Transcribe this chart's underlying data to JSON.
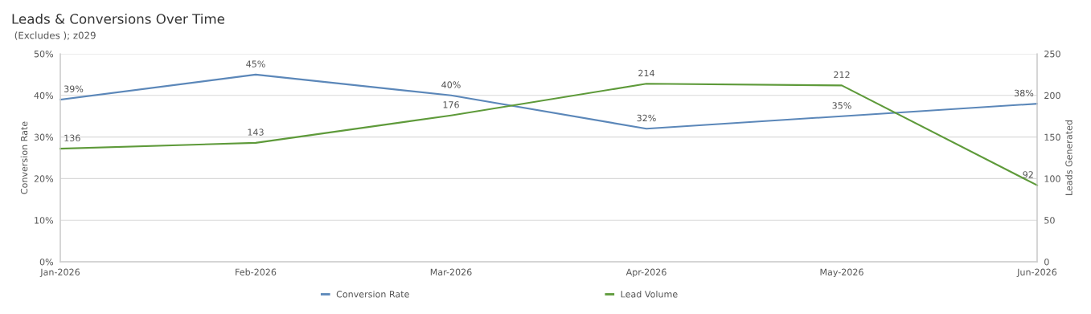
{
  "chart_data": {
    "type": "line",
    "title": "Leads & Conversions Over Time",
    "subtitle": " (Excludes ); z029",
    "ylabel": "Conversion Rate",
    "y2label": "Leads Generated",
    "categories": [
      "Jan-2026",
      "Feb-2026",
      "Mar-2026",
      "Apr-2026",
      "May-2026",
      "Jun-2026"
    ],
    "series": [
      {
        "name": "Conversion Rate",
        "color": "#5b87b9",
        "values": [
          39,
          45,
          40,
          32,
          35,
          38
        ],
        "value_labels": [
          "39%",
          "45%",
          "40%",
          "32%",
          "35%",
          "38%"
        ]
      },
      {
        "name": "Lead Volume",
        "color": "#5e9a3a",
        "axis": "y2",
        "values": [
          136,
          143,
          176,
          214,
          212,
          92
        ],
        "value_labels": [
          "136",
          "143",
          "176",
          "214",
          "212",
          "92"
        ]
      }
    ],
    "ylim": [
      0,
      50
    ],
    "yticks": [
      {
        "value": 0,
        "label": "0%"
      },
      {
        "value": 10,
        "label": "10%"
      },
      {
        "value": 20,
        "label": "20%"
      },
      {
        "value": 30,
        "label": "30%"
      },
      {
        "value": 40,
        "label": "40%"
      },
      {
        "value": 50,
        "label": "50%"
      }
    ],
    "y2lim": [
      0,
      250
    ],
    "y2ticks": [
      0,
      50,
      100,
      150,
      200,
      250
    ],
    "grid": "y",
    "legend": "bottom",
    "marker": "none",
    "line_style": "solid"
  }
}
